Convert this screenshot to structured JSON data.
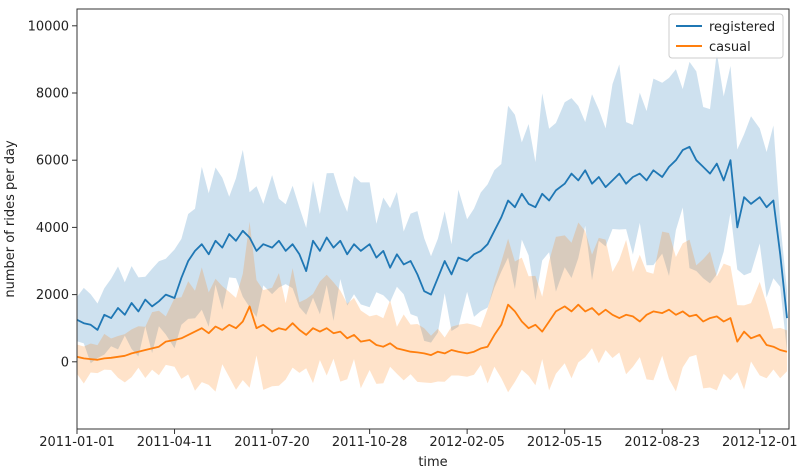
{
  "chart_data": {
    "type": "line",
    "title": "",
    "xlabel": "time",
    "ylabel": "number of rides per day",
    "x_ticks": [
      "2011-01-01",
      "2011-04-11",
      "2011-07-20",
      "2011-10-28",
      "2012-02-05",
      "2012-05-15",
      "2012-08-23",
      "2012-12-01"
    ],
    "y_ticks": [
      "0",
      "2000",
      "4000",
      "6000",
      "8000",
      "10000"
    ],
    "ylim": [
      -2000,
      10500
    ],
    "xlim": [
      "2011-01-01",
      "2012-12-31"
    ],
    "grid": false,
    "legend_position": "top-right",
    "series": [
      {
        "name": "registered",
        "color": "#1f77b4",
        "band_color": "#1f77b4",
        "points": [
          [
            "2011-01-01",
            1250
          ],
          [
            "2011-01-08",
            1150
          ],
          [
            "2011-01-15",
            1100
          ],
          [
            "2011-01-22",
            950
          ],
          [
            "2011-01-29",
            1400
          ],
          [
            "2011-02-05",
            1300
          ],
          [
            "2011-02-12",
            1600
          ],
          [
            "2011-02-19",
            1400
          ],
          [
            "2011-02-26",
            1750
          ],
          [
            "2011-03-05",
            1500
          ],
          [
            "2011-03-12",
            1850
          ],
          [
            "2011-03-19",
            1650
          ],
          [
            "2011-03-26",
            1800
          ],
          [
            "2011-04-02",
            2000
          ],
          [
            "2011-04-11",
            1900
          ],
          [
            "2011-04-18",
            2500
          ],
          [
            "2011-04-25",
            3000
          ],
          [
            "2011-05-02",
            3300
          ],
          [
            "2011-05-09",
            3500
          ],
          [
            "2011-05-16",
            3200
          ],
          [
            "2011-05-23",
            3600
          ],
          [
            "2011-05-30",
            3400
          ],
          [
            "2011-06-06",
            3800
          ],
          [
            "2011-06-13",
            3600
          ],
          [
            "2011-06-20",
            3900
          ],
          [
            "2011-06-27",
            3700
          ],
          [
            "2011-07-04",
            3300
          ],
          [
            "2011-07-11",
            3500
          ],
          [
            "2011-07-20",
            3400
          ],
          [
            "2011-07-27",
            3600
          ],
          [
            "2011-08-03",
            3300
          ],
          [
            "2011-08-10",
            3500
          ],
          [
            "2011-08-17",
            3200
          ],
          [
            "2011-08-24",
            2700
          ],
          [
            "2011-08-31",
            3600
          ],
          [
            "2011-09-07",
            3300
          ],
          [
            "2011-09-14",
            3700
          ],
          [
            "2011-09-21",
            3400
          ],
          [
            "2011-09-28",
            3600
          ],
          [
            "2011-10-05",
            3200
          ],
          [
            "2011-10-12",
            3500
          ],
          [
            "2011-10-19",
            3300
          ],
          [
            "2011-10-28",
            3500
          ],
          [
            "2011-11-04",
            3100
          ],
          [
            "2011-11-11",
            3300
          ],
          [
            "2011-11-18",
            2800
          ],
          [
            "2011-11-25",
            3200
          ],
          [
            "2011-12-02",
            2900
          ],
          [
            "2011-12-09",
            3000
          ],
          [
            "2011-12-16",
            2600
          ],
          [
            "2011-12-23",
            2100
          ],
          [
            "2011-12-30",
            2000
          ],
          [
            "2012-01-06",
            2500
          ],
          [
            "2012-01-13",
            3000
          ],
          [
            "2012-01-20",
            2600
          ],
          [
            "2012-01-27",
            3100
          ],
          [
            "2012-02-05",
            3000
          ],
          [
            "2012-02-12",
            3200
          ],
          [
            "2012-02-19",
            3300
          ],
          [
            "2012-02-26",
            3500
          ],
          [
            "2012-03-04",
            3900
          ],
          [
            "2012-03-11",
            4300
          ],
          [
            "2012-03-18",
            4800
          ],
          [
            "2012-03-25",
            4600
          ],
          [
            "2012-04-01",
            5000
          ],
          [
            "2012-04-08",
            4700
          ],
          [
            "2012-04-15",
            4600
          ],
          [
            "2012-04-22",
            5000
          ],
          [
            "2012-04-29",
            4800
          ],
          [
            "2012-05-06",
            5100
          ],
          [
            "2012-05-15",
            5300
          ],
          [
            "2012-05-22",
            5600
          ],
          [
            "2012-05-29",
            5400
          ],
          [
            "2012-06-05",
            5700
          ],
          [
            "2012-06-12",
            5300
          ],
          [
            "2012-06-19",
            5500
          ],
          [
            "2012-06-26",
            5200
          ],
          [
            "2012-07-03",
            5400
          ],
          [
            "2012-07-10",
            5600
          ],
          [
            "2012-07-17",
            5300
          ],
          [
            "2012-07-24",
            5500
          ],
          [
            "2012-07-31",
            5600
          ],
          [
            "2012-08-07",
            5400
          ],
          [
            "2012-08-14",
            5700
          ],
          [
            "2012-08-23",
            5500
          ],
          [
            "2012-08-30",
            5800
          ],
          [
            "2012-09-06",
            6000
          ],
          [
            "2012-09-13",
            6300
          ],
          [
            "2012-09-20",
            6400
          ],
          [
            "2012-09-27",
            6000
          ],
          [
            "2012-10-04",
            5800
          ],
          [
            "2012-10-11",
            5600
          ],
          [
            "2012-10-18",
            5900
          ],
          [
            "2012-10-25",
            5400
          ],
          [
            "2012-11-01",
            6000
          ],
          [
            "2012-11-08",
            4000
          ],
          [
            "2012-11-15",
            4900
          ],
          [
            "2012-11-22",
            4700
          ],
          [
            "2012-12-01",
            4900
          ],
          [
            "2012-12-08",
            4600
          ],
          [
            "2012-12-15",
            4800
          ],
          [
            "2012-12-22",
            3200
          ],
          [
            "2012-12-29",
            1300
          ]
        ]
      },
      {
        "name": "casual",
        "color": "#ff7f0e",
        "band_color": "#ff7f0e",
        "points": [
          [
            "2011-01-01",
            150
          ],
          [
            "2011-01-08",
            100
          ],
          [
            "2011-01-15",
            80
          ],
          [
            "2011-01-22",
            60
          ],
          [
            "2011-01-29",
            100
          ],
          [
            "2011-02-05",
            120
          ],
          [
            "2011-02-12",
            150
          ],
          [
            "2011-02-19",
            180
          ],
          [
            "2011-02-26",
            250
          ],
          [
            "2011-03-05",
            300
          ],
          [
            "2011-03-12",
            350
          ],
          [
            "2011-03-19",
            400
          ],
          [
            "2011-03-26",
            450
          ],
          [
            "2011-04-02",
            600
          ],
          [
            "2011-04-11",
            650
          ],
          [
            "2011-04-18",
            700
          ],
          [
            "2011-04-25",
            800
          ],
          [
            "2011-05-02",
            900
          ],
          [
            "2011-05-09",
            1000
          ],
          [
            "2011-05-16",
            850
          ],
          [
            "2011-05-23",
            1050
          ],
          [
            "2011-05-30",
            950
          ],
          [
            "2011-06-06",
            1100
          ],
          [
            "2011-06-13",
            1000
          ],
          [
            "2011-06-20",
            1200
          ],
          [
            "2011-06-27",
            1650
          ],
          [
            "2011-07-04",
            1000
          ],
          [
            "2011-07-11",
            1100
          ],
          [
            "2011-07-20",
            900
          ],
          [
            "2011-07-27",
            1000
          ],
          [
            "2011-08-03",
            950
          ],
          [
            "2011-08-10",
            1150
          ],
          [
            "2011-08-17",
            950
          ],
          [
            "2011-08-24",
            800
          ],
          [
            "2011-08-31",
            1000
          ],
          [
            "2011-09-07",
            900
          ],
          [
            "2011-09-14",
            1000
          ],
          [
            "2011-09-21",
            850
          ],
          [
            "2011-09-28",
            900
          ],
          [
            "2011-10-05",
            700
          ],
          [
            "2011-10-12",
            800
          ],
          [
            "2011-10-19",
            600
          ],
          [
            "2011-10-28",
            650
          ],
          [
            "2011-11-04",
            500
          ],
          [
            "2011-11-11",
            450
          ],
          [
            "2011-11-18",
            550
          ],
          [
            "2011-11-25",
            400
          ],
          [
            "2011-12-02",
            350
          ],
          [
            "2011-12-09",
            300
          ],
          [
            "2011-12-16",
            280
          ],
          [
            "2011-12-23",
            250
          ],
          [
            "2011-12-30",
            200
          ],
          [
            "2012-01-06",
            300
          ],
          [
            "2012-01-13",
            250
          ],
          [
            "2012-01-20",
            350
          ],
          [
            "2012-01-27",
            300
          ],
          [
            "2012-02-05",
            250
          ],
          [
            "2012-02-12",
            300
          ],
          [
            "2012-02-19",
            400
          ],
          [
            "2012-02-26",
            450
          ],
          [
            "2012-03-04",
            800
          ],
          [
            "2012-03-11",
            1100
          ],
          [
            "2012-03-18",
            1700
          ],
          [
            "2012-03-25",
            1500
          ],
          [
            "2012-04-01",
            1200
          ],
          [
            "2012-04-08",
            1000
          ],
          [
            "2012-04-15",
            1100
          ],
          [
            "2012-04-22",
            900
          ],
          [
            "2012-04-29",
            1200
          ],
          [
            "2012-05-06",
            1500
          ],
          [
            "2012-05-15",
            1650
          ],
          [
            "2012-05-22",
            1500
          ],
          [
            "2012-05-29",
            1700
          ],
          [
            "2012-06-05",
            1500
          ],
          [
            "2012-06-12",
            1600
          ],
          [
            "2012-06-19",
            1400
          ],
          [
            "2012-06-26",
            1550
          ],
          [
            "2012-07-03",
            1400
          ],
          [
            "2012-07-10",
            1300
          ],
          [
            "2012-07-17",
            1400
          ],
          [
            "2012-07-24",
            1350
          ],
          [
            "2012-07-31",
            1200
          ],
          [
            "2012-08-07",
            1400
          ],
          [
            "2012-08-14",
            1500
          ],
          [
            "2012-08-23",
            1450
          ],
          [
            "2012-08-30",
            1550
          ],
          [
            "2012-09-06",
            1400
          ],
          [
            "2012-09-13",
            1500
          ],
          [
            "2012-09-20",
            1350
          ],
          [
            "2012-09-27",
            1400
          ],
          [
            "2012-10-04",
            1200
          ],
          [
            "2012-10-11",
            1300
          ],
          [
            "2012-10-18",
            1350
          ],
          [
            "2012-10-25",
            1200
          ],
          [
            "2012-11-01",
            1300
          ],
          [
            "2012-11-08",
            600
          ],
          [
            "2012-11-15",
            900
          ],
          [
            "2012-11-22",
            700
          ],
          [
            "2012-12-01",
            800
          ],
          [
            "2012-12-08",
            500
          ],
          [
            "2012-12-15",
            450
          ],
          [
            "2012-12-22",
            350
          ],
          [
            "2012-12-29",
            300
          ]
        ]
      }
    ]
  }
}
